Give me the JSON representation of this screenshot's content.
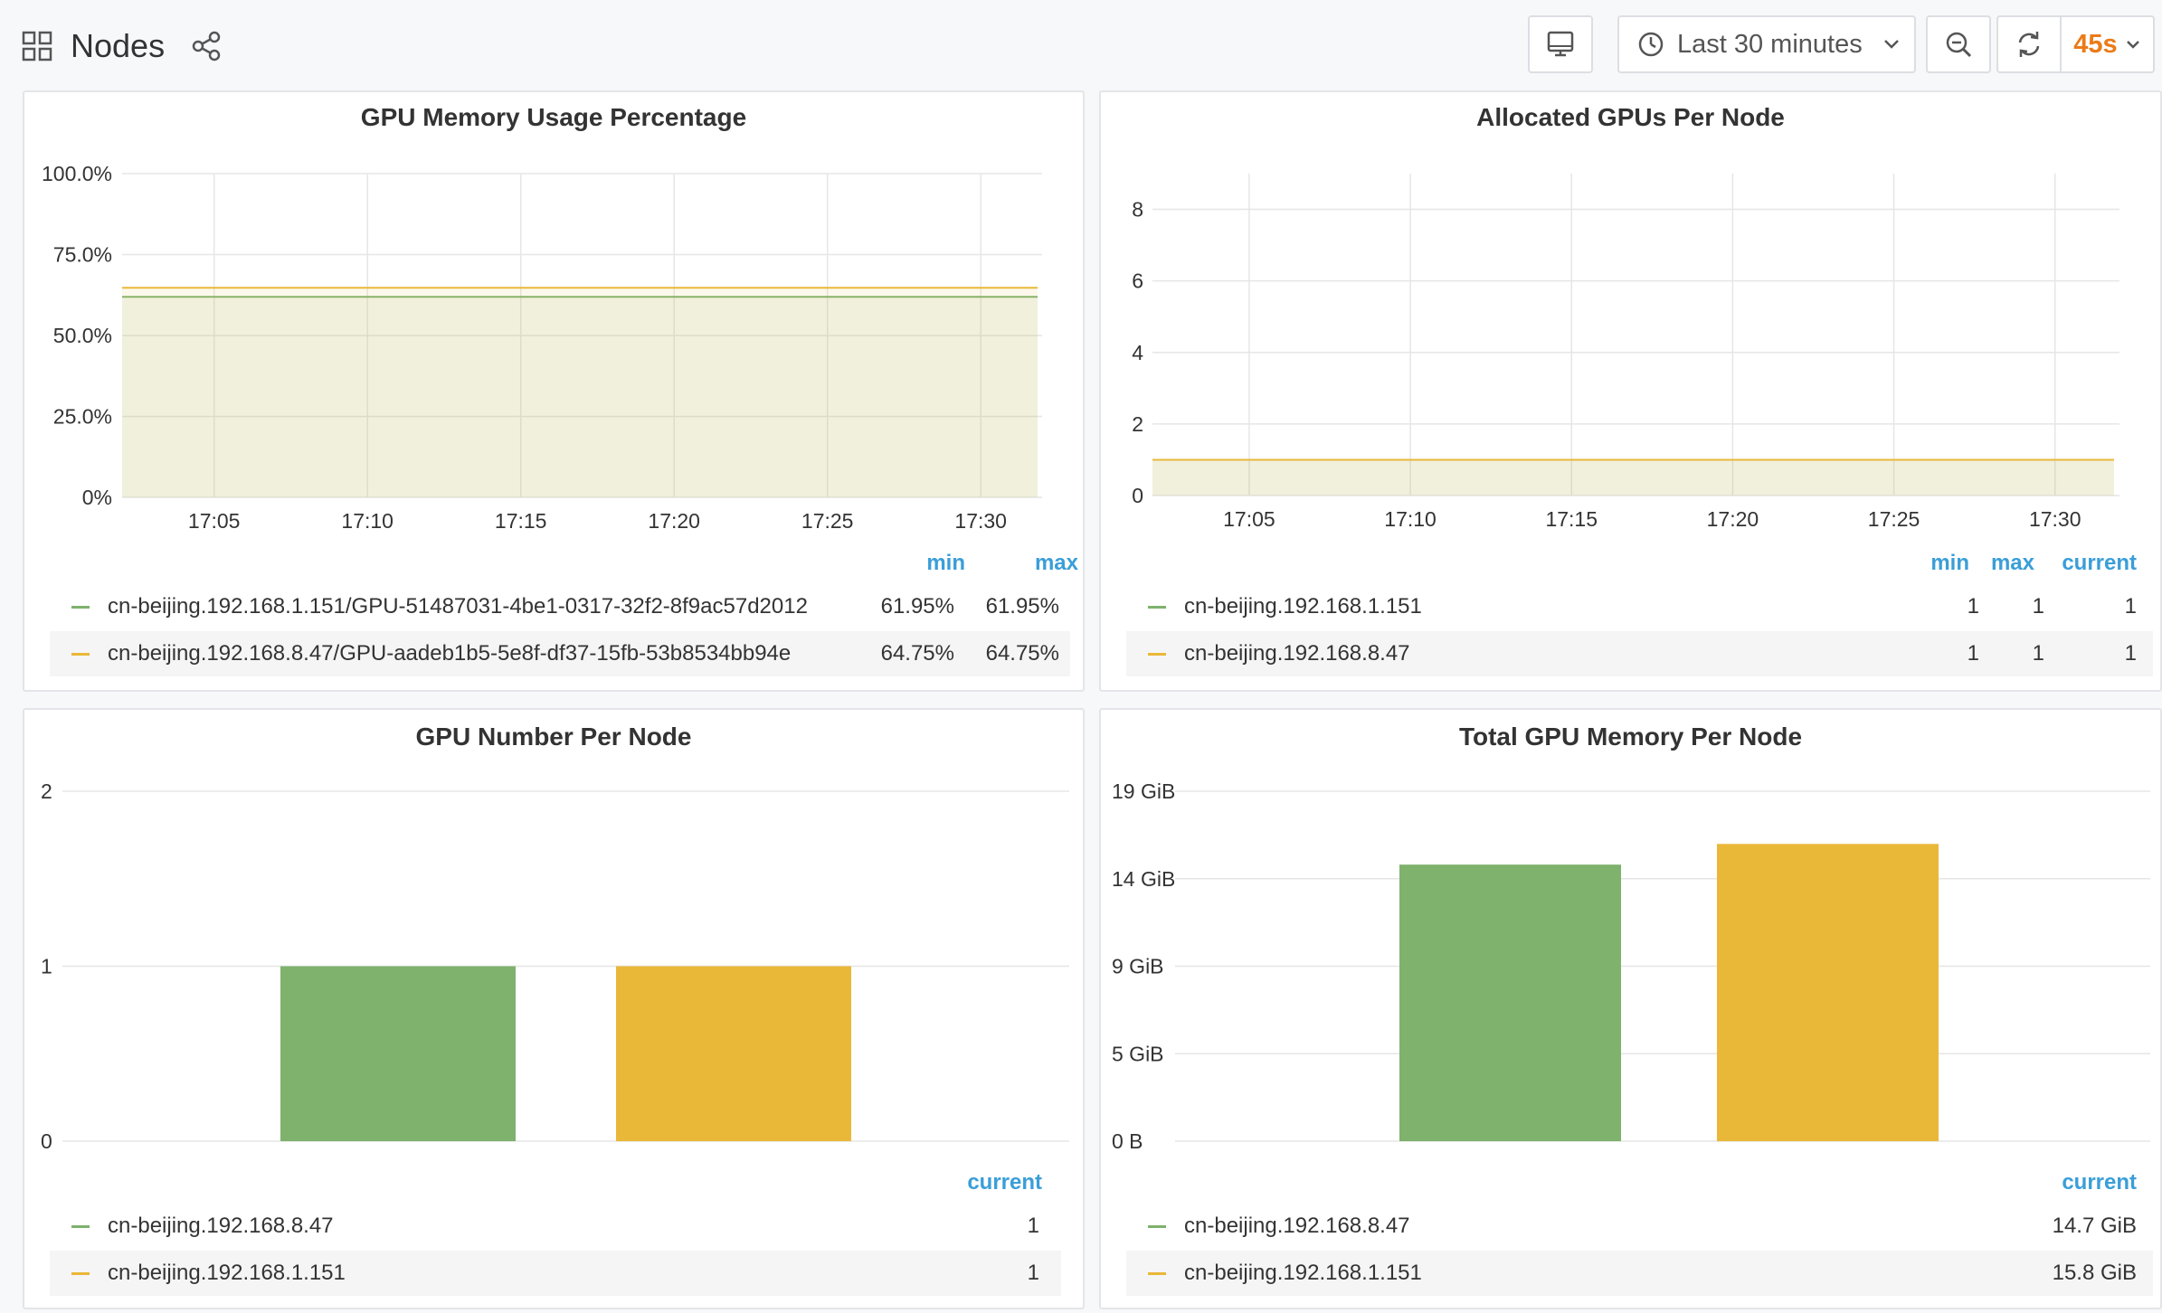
{
  "navbar": {
    "title": "Nodes",
    "time_range": "Last 30 minutes",
    "refresh_interval": "45s"
  },
  "colors": {
    "green": "#7eb26d",
    "yellow": "#eab839",
    "legend_header": "#3a9ed8",
    "interval": "#eb7b18"
  },
  "icons": [
    "dashboard-grid-icon",
    "share-icon",
    "tv-icon",
    "clock-icon",
    "chevron-down-icon",
    "zoom-out-icon",
    "refresh-icon"
  ],
  "panels": {
    "mem_usage": {
      "title": "GPU Memory Usage Percentage",
      "legend_headers": [
        "min",
        "max"
      ],
      "legend": [
        {
          "name": "cn-beijing.192.168.1.151/GPU-51487031-4be1-0317-32f2-8f9ac57d2012",
          "min": "61.95%",
          "max": "61.95%",
          "color": "#7eb26d"
        },
        {
          "name": "cn-beijing.192.168.8.47/GPU-aadeb1b5-5e8f-df37-15fb-53b8534bb94e",
          "min": "64.75%",
          "max": "64.75%",
          "color": "#eab839"
        }
      ]
    },
    "allocated": {
      "title": "Allocated GPUs Per Node",
      "legend_headers": [
        "min",
        "max",
        "current"
      ],
      "legend": [
        {
          "name": "cn-beijing.192.168.1.151",
          "min": "1",
          "max": "1",
          "current": "1",
          "color": "#7eb26d"
        },
        {
          "name": "cn-beijing.192.168.8.47",
          "min": "1",
          "max": "1",
          "current": "1",
          "color": "#eab839"
        }
      ]
    },
    "gpu_number": {
      "title": "GPU Number Per Node",
      "legend_headers": [
        "current"
      ],
      "legend": [
        {
          "name": "cn-beijing.192.168.8.47",
          "current": "1",
          "color": "#7eb26d"
        },
        {
          "name": "cn-beijing.192.168.1.151",
          "current": "1",
          "color": "#eab839"
        }
      ]
    },
    "total_mem": {
      "title": "Total GPU Memory Per Node",
      "legend_headers": [
        "current"
      ],
      "legend": [
        {
          "name": "cn-beijing.192.168.8.47",
          "current": "14.7 GiB",
          "color": "#7eb26d"
        },
        {
          "name": "cn-beijing.192.168.1.151",
          "current": "15.8 GiB",
          "color": "#eab839"
        }
      ]
    }
  },
  "chart_data": [
    {
      "type": "area",
      "title": "GPU Memory Usage Percentage",
      "x": [
        "17:05",
        "17:10",
        "17:15",
        "17:20",
        "17:25",
        "17:30"
      ],
      "x_range": [
        "17:02",
        "17:32"
      ],
      "y_ticks": [
        "0%",
        "25.0%",
        "50.0%",
        "75.0%",
        "100.0%"
      ],
      "ylim": [
        0,
        100
      ],
      "series": [
        {
          "name": "cn-beijing.192.168.1.151/GPU-51487031-4be1-0317-32f2-8f9ac57d2012",
          "values": [
            61.95,
            61.95,
            61.95,
            61.95,
            61.95,
            61.95
          ],
          "color": "#7eb26d"
        },
        {
          "name": "cn-beijing.192.168.8.47/GPU-aadeb1b5-5e8f-df37-15fb-53b8534bb94e",
          "values": [
            64.75,
            64.75,
            64.75,
            64.75,
            64.75,
            64.75
          ],
          "color": "#eab839"
        }
      ],
      "grid": true
    },
    {
      "type": "area",
      "title": "Allocated GPUs Per Node",
      "x": [
        "17:05",
        "17:10",
        "17:15",
        "17:20",
        "17:25",
        "17:30"
      ],
      "x_range": [
        "17:02",
        "17:32"
      ],
      "y_ticks": [
        "0",
        "2",
        "4",
        "6",
        "8"
      ],
      "ylim": [
        0,
        9
      ],
      "series": [
        {
          "name": "cn-beijing.192.168.1.151",
          "values": [
            1,
            1,
            1,
            1,
            1,
            1
          ],
          "color": "#7eb26d"
        },
        {
          "name": "cn-beijing.192.168.8.47",
          "values": [
            1,
            1,
            1,
            1,
            1,
            1
          ],
          "color": "#eab839"
        }
      ],
      "grid": true
    },
    {
      "type": "bar",
      "title": "GPU Number Per Node",
      "categories": [
        "cn-beijing.192.168.8.47",
        "cn-beijing.192.168.1.151"
      ],
      "values": [
        1,
        1
      ],
      "colors": [
        "#7eb26d",
        "#eab839"
      ],
      "y_ticks": [
        "0",
        "1",
        "2"
      ],
      "ylim": [
        0,
        2
      ],
      "grid": true
    },
    {
      "type": "bar",
      "title": "Total GPU Memory Per Node",
      "categories": [
        "cn-beijing.192.168.8.47",
        "cn-beijing.192.168.1.151"
      ],
      "values": [
        14.7,
        15.8
      ],
      "colors": [
        "#7eb26d",
        "#eab839"
      ],
      "y_ticks": [
        "0 B",
        "5 GiB",
        "9 GiB",
        "14 GiB",
        "19 GiB"
      ],
      "ylim": [
        0,
        18.6
      ],
      "grid": true
    }
  ]
}
